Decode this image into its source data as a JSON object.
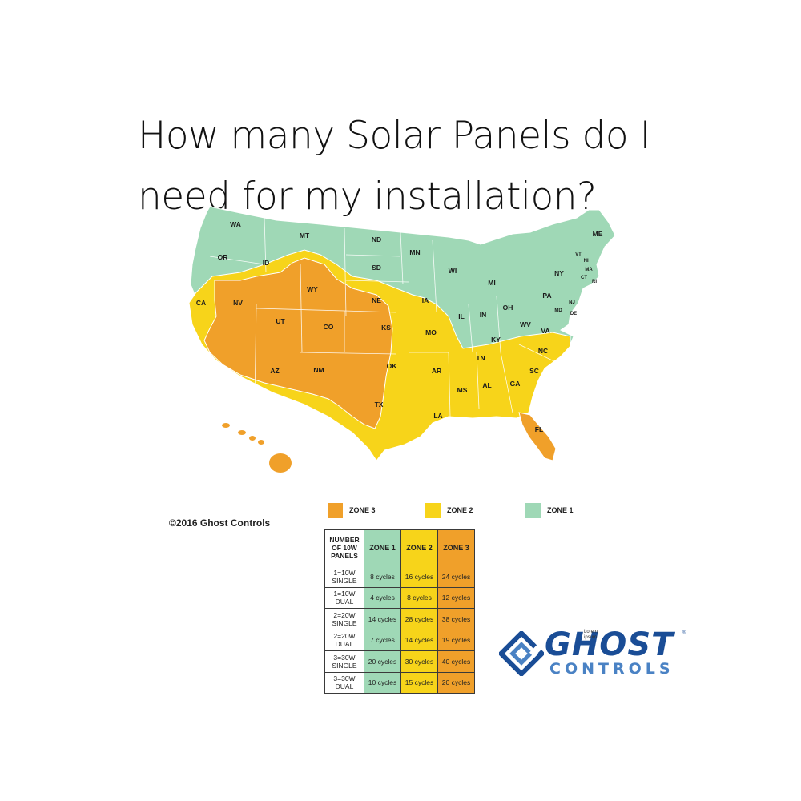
{
  "title": {
    "line1": "How many Solar Panels do I",
    "line2": "need for my installation?"
  },
  "colors": {
    "zone1": "#9fd8b6",
    "zone2": "#f7d41a",
    "zone3": "#f0a02a",
    "logo_dark": "#1a4d96",
    "logo_light": "#4a82c4"
  },
  "copyright": "©2016 Ghost Controls",
  "legend": [
    {
      "label": "ZONE 3",
      "color": "#f0a02a"
    },
    {
      "label": "ZONE 2",
      "color": "#f7d41a"
    },
    {
      "label": "ZONE 1",
      "color": "#9fd8b6"
    }
  ],
  "states": [
    "WA",
    "MT",
    "ND",
    "MN",
    "OR",
    "ID",
    "SD",
    "WI",
    "MI",
    "NY",
    "ME",
    "VT",
    "NH",
    "MA",
    "CT",
    "RI",
    "CA",
    "NV",
    "WY",
    "NE",
    "IA",
    "PA",
    "NJ",
    "MD",
    "DE",
    "UT",
    "CO",
    "KS",
    "IL",
    "IN",
    "OH",
    "WV",
    "VA",
    "KY",
    "MO",
    "NC",
    "AZ",
    "NM",
    "OK",
    "AR",
    "TN",
    "SC",
    "MS",
    "AL",
    "GA",
    "TX",
    "LA",
    "FL"
  ],
  "table": {
    "headers": [
      "NUMBER OF 10W PANELS",
      "ZONE 1",
      "ZONE 2",
      "ZONE 3"
    ],
    "rows": [
      {
        "panels": "1=10W SINGLE",
        "z1": "8 cycles",
        "z2": "16 cycles",
        "z3": "24 cycles"
      },
      {
        "panels": "1=10W DUAL",
        "z1": "4 cycles",
        "z2": "8 cycles",
        "z3": "12 cycles"
      },
      {
        "panels": "2=20W SINGLE",
        "z1": "14 cycles",
        "z2": "28 cycles",
        "z3": "38 cycles"
      },
      {
        "panels": "2=20W DUAL",
        "z1": "7 cycles",
        "z2": "14 cycles",
        "z3": "19 cycles"
      },
      {
        "panels": "3=30W SINGLE",
        "z1": "20 cycles",
        "z2": "30 cycles",
        "z3": "40 cycles"
      },
      {
        "panels": "3=30W DUAL",
        "z1": "10 cycles",
        "z2": "15 cycles",
        "z3": "20 cycles"
      }
    ]
  },
  "logo": {
    "word1": "GHOST",
    "word2": "CONTROLS",
    "tm": "®"
  },
  "lorem": "Lorem ipsum"
}
